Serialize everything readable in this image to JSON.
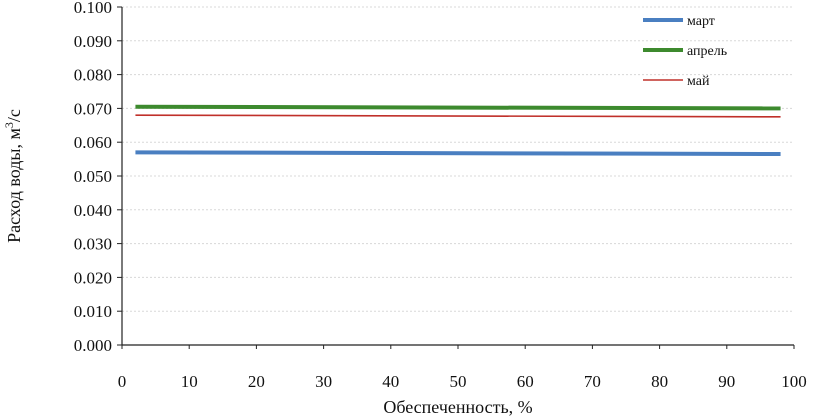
{
  "chart_data": {
    "type": "line",
    "title": "",
    "xlabel": "Обеспеченность, %",
    "ylabel_main": "Расход воды, м",
    "ylabel_sup": "3",
    "ylabel_tail": "/с",
    "xlim": [
      0,
      100
    ],
    "ylim": [
      0,
      0.1
    ],
    "x_ticks": [
      "0",
      "10",
      "20",
      "30",
      "40",
      "50",
      "60",
      "70",
      "80",
      "90",
      "100"
    ],
    "y_ticks": [
      "0.000",
      "0.010",
      "0.020",
      "0.030",
      "0.040",
      "0.050",
      "0.060",
      "0.070",
      "0.080",
      "0.090",
      "0.100"
    ],
    "grid": true,
    "legend_position": "top-right",
    "series": [
      {
        "name": "март",
        "color": "#4a7fc1",
        "x": [
          2,
          98
        ],
        "y": [
          0.057,
          0.0565
        ]
      },
      {
        "name": "апрель",
        "color": "#3d8a2e",
        "x": [
          2,
          98
        ],
        "y": [
          0.0705,
          0.07
        ]
      },
      {
        "name": "май",
        "color": "#c0302a",
        "x": [
          2,
          98
        ],
        "y": [
          0.068,
          0.0675
        ]
      }
    ]
  }
}
